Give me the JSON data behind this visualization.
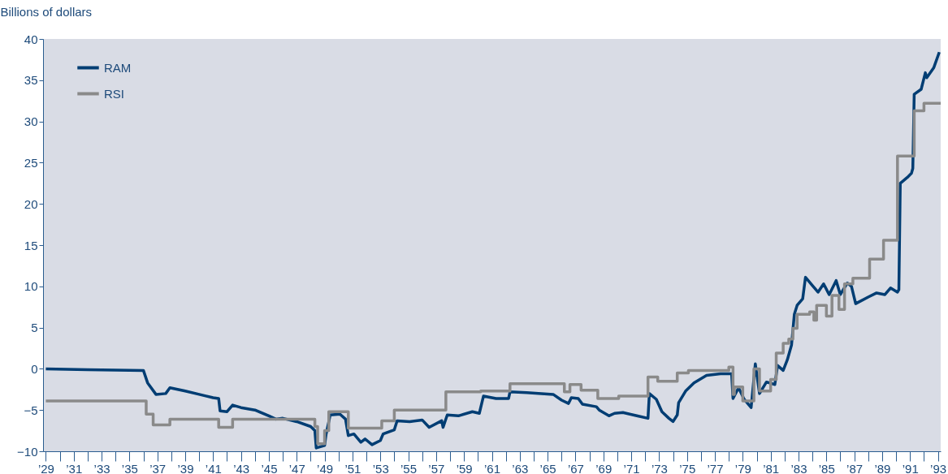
{
  "chart_data": {
    "type": "line",
    "ylabel": "Billions of dollars",
    "xlim": [
      1928.8,
      1993.2
    ],
    "ylim": [
      -10,
      40
    ],
    "yticks": [
      -10,
      -5,
      0,
      5,
      10,
      15,
      20,
      25,
      30,
      35,
      40
    ],
    "xticks": [
      {
        "value": 1929,
        "label": "’29"
      },
      {
        "value": 1930,
        "label": null
      },
      {
        "value": 1931,
        "label": "’31"
      },
      {
        "value": 1932,
        "label": null
      },
      {
        "value": 1933,
        "label": "’33"
      },
      {
        "value": 1934,
        "label": null
      },
      {
        "value": 1935,
        "label": "’35"
      },
      {
        "value": 1936,
        "label": null
      },
      {
        "value": 1937,
        "label": "’37"
      },
      {
        "value": 1938,
        "label": null
      },
      {
        "value": 1939,
        "label": "’39"
      },
      {
        "value": 1940,
        "label": null
      },
      {
        "value": 1941,
        "label": "’41"
      },
      {
        "value": 1942,
        "label": null
      },
      {
        "value": 1943,
        "label": "’43"
      },
      {
        "value": 1944,
        "label": null
      },
      {
        "value": 1945,
        "label": "’45"
      },
      {
        "value": 1946,
        "label": null
      },
      {
        "value": 1947,
        "label": "’47"
      },
      {
        "value": 1948,
        "label": null
      },
      {
        "value": 1949,
        "label": "’49"
      },
      {
        "value": 1950,
        "label": null
      },
      {
        "value": 1951,
        "label": "’51"
      },
      {
        "value": 1952,
        "label": null
      },
      {
        "value": 1953,
        "label": "’53"
      },
      {
        "value": 1954,
        "label": null
      },
      {
        "value": 1955,
        "label": "’55"
      },
      {
        "value": 1956,
        "label": null
      },
      {
        "value": 1957,
        "label": "’57"
      },
      {
        "value": 1958,
        "label": null
      },
      {
        "value": 1959,
        "label": "’59"
      },
      {
        "value": 1960,
        "label": null
      },
      {
        "value": 1961,
        "label": "’61"
      },
      {
        "value": 1962,
        "label": null
      },
      {
        "value": 1963,
        "label": "’63"
      },
      {
        "value": 1964,
        "label": null
      },
      {
        "value": 1965,
        "label": "’65"
      },
      {
        "value": 1966,
        "label": null
      },
      {
        "value": 1967,
        "label": "’67"
      },
      {
        "value": 1968,
        "label": null
      },
      {
        "value": 1969,
        "label": "’69"
      },
      {
        "value": 1970,
        "label": null
      },
      {
        "value": 1971,
        "label": "’71"
      },
      {
        "value": 1972,
        "label": null
      },
      {
        "value": 1973,
        "label": "’73"
      },
      {
        "value": 1974,
        "label": null
      },
      {
        "value": 1975,
        "label": "’75"
      },
      {
        "value": 1976,
        "label": null
      },
      {
        "value": 1977,
        "label": "’77"
      },
      {
        "value": 1978,
        "label": null
      },
      {
        "value": 1979,
        "label": "’79"
      },
      {
        "value": 1980,
        "label": null
      },
      {
        "value": 1981,
        "label": "’81"
      },
      {
        "value": 1982,
        "label": null
      },
      {
        "value": 1983,
        "label": "’83"
      },
      {
        "value": 1984,
        "label": null
      },
      {
        "value": 1985,
        "label": "’85"
      },
      {
        "value": 1986,
        "label": null
      },
      {
        "value": 1987,
        "label": "’87"
      },
      {
        "value": 1988,
        "label": null
      },
      {
        "value": 1989,
        "label": "’89"
      },
      {
        "value": 1990,
        "label": null
      },
      {
        "value": 1991,
        "label": "’91"
      },
      {
        "value": 1992,
        "label": null
      },
      {
        "value": 1993,
        "label": "’93"
      }
    ],
    "grid": false,
    "legend": "top left",
    "line_style": "solid",
    "marker": "none",
    "series": [
      {
        "name": "RAM",
        "color": "#003d73",
        "x": [
          1929,
          1932,
          1936.0,
          1936.3,
          1936.9,
          1937.6,
          1937.9,
          1939,
          1940,
          1941,
          1941.4,
          1941.5,
          1942.0,
          1942.4,
          1943,
          1944,
          1945,
          1945.5,
          1946,
          1947,
          1948,
          1948.3,
          1948.4,
          1949.0,
          1949.1,
          1949.4,
          1950.1,
          1950.5,
          1950.7,
          1951.1,
          1951.6,
          1951.9,
          1952.4,
          1953.0,
          1953.2,
          1954.0,
          1954.2,
          1955.1,
          1956.0,
          1956.5,
          1957.4,
          1957.5,
          1957.8,
          1958.6,
          1959.6,
          1960.1,
          1960.4,
          1961.3,
          1962.2,
          1962.3,
          1963.5,
          1965.4,
          1966.0,
          1966.5,
          1966.7,
          1967.2,
          1967.5,
          1968.5,
          1968.7,
          1969.4,
          1969.8,
          1970.4,
          1971.4,
          1972.2,
          1972.3,
          1972.8,
          1973.2,
          1973.7,
          1974.0,
          1974.3,
          1974.4,
          1974.9,
          1975.5,
          1976.4,
          1977.4,
          1978.2,
          1978.3,
          1978.7,
          1979.1,
          1979.6,
          1979.9,
          1980.2,
          1980.7,
          1981.3,
          1981.5,
          1981.9,
          1982.2,
          1982.5,
          1982.7,
          1982.9,
          1983.3,
          1983.5,
          1984.0,
          1984.4,
          1984.8,
          1985.2,
          1985.7,
          1986.0,
          1986.5,
          1986.8,
          1987.1,
          1988.0,
          1988.6,
          1989.2,
          1989.6,
          1990.1,
          1990.2,
          1990.3,
          1990.8,
          1991.1,
          1991.2,
          1991.3,
          1991.8,
          1992.1,
          1992.2,
          1992.7,
          1993.1
        ],
        "values": [
          0,
          -0.1,
          -0.2,
          -1.7,
          -3.1,
          -3.0,
          -2.3,
          -2.7,
          -3.1,
          -3.5,
          -3.6,
          -5.1,
          -5.2,
          -4.4,
          -4.7,
          -5.0,
          -5.7,
          -6.1,
          -6.0,
          -6.4,
          -7.0,
          -7.5,
          -9.6,
          -9.3,
          -8.0,
          -5.6,
          -5.5,
          -6.1,
          -8.1,
          -7.9,
          -8.9,
          -8.5,
          -9.2,
          -8.7,
          -7.9,
          -7.4,
          -6.3,
          -6.4,
          -6.2,
          -7.1,
          -6.3,
          -7.1,
          -5.6,
          -5.7,
          -5.2,
          -5.4,
          -3.3,
          -3.6,
          -3.6,
          -2.8,
          -2.9,
          -3.1,
          -3.8,
          -4.2,
          -3.5,
          -3.6,
          -4.3,
          -4.6,
          -5.0,
          -5.7,
          -5.4,
          -5.3,
          -5.7,
          -6.0,
          -3.0,
          -3.7,
          -5.2,
          -6.0,
          -6.4,
          -5.6,
          -4.1,
          -2.7,
          -1.7,
          -0.8,
          -0.6,
          -0.6,
          -3.6,
          -2.3,
          -3.7,
          -4.7,
          0.6,
          -3.0,
          -1.6,
          -1.9,
          0.4,
          -0.2,
          1.1,
          2.9,
          6.6,
          7.7,
          8.5,
          11.1,
          10.1,
          9.3,
          10.3,
          9.0,
          10.7,
          9.0,
          10.4,
          10.0,
          7.9,
          8.7,
          9.2,
          9.0,
          9.8,
          9.3,
          9.6,
          22.5,
          23.2,
          23.7,
          24.3,
          33.3,
          33.9,
          35.9,
          35.3,
          36.5,
          38.4
        ]
      },
      {
        "name": "RSI",
        "type": "step",
        "color": "#8a8a8a",
        "x": [
          1929,
          1936.2,
          1936.7,
          1937.9,
          1941.4,
          1942.4,
          1948.3,
          1948.5,
          1949.0,
          1949.3,
          1950.7,
          1953.1,
          1954.0,
          1957.7,
          1960.2,
          1962.3,
          1966.2,
          1966.6,
          1967.4,
          1968.6,
          1970.1,
          1972.2,
          1972.9,
          1974.3,
          1975.1,
          1978.0,
          1978.3,
          1978.4,
          1979.0,
          1979.8,
          1980.2,
          1981.0,
          1981.4,
          1981.9,
          1982.3,
          1982.6,
          1982.9,
          1983.8,
          1984.1,
          1984.3,
          1985.0,
          1985.4,
          1985.9,
          1986.3,
          1986.9,
          1988.1,
          1989.1,
          1990.1,
          1991.3,
          1992.0,
          1993.2
        ],
        "values": [
          -3.9,
          -5.5,
          -6.8,
          -6.1,
          -7.1,
          -6.1,
          -7.0,
          -9.1,
          -7.5,
          -5.2,
          -7.2,
          -6.3,
          -5.0,
          -2.8,
          -2.7,
          -1.8,
          -2.8,
          -1.9,
          -2.6,
          -3.6,
          -3.3,
          -1.0,
          -1.5,
          -0.5,
          -0.2,
          0.2,
          -3.1,
          -2.2,
          -3.9,
          0.0,
          -2.7,
          -1.3,
          1.9,
          3.1,
          3.6,
          4.9,
          6.6,
          6.9,
          5.9,
          7.7,
          6.4,
          8.9,
          7.2,
          10.3,
          11.0,
          13.3,
          15.6,
          25.8,
          31.3,
          32.2,
          32.2
        ]
      }
    ]
  }
}
